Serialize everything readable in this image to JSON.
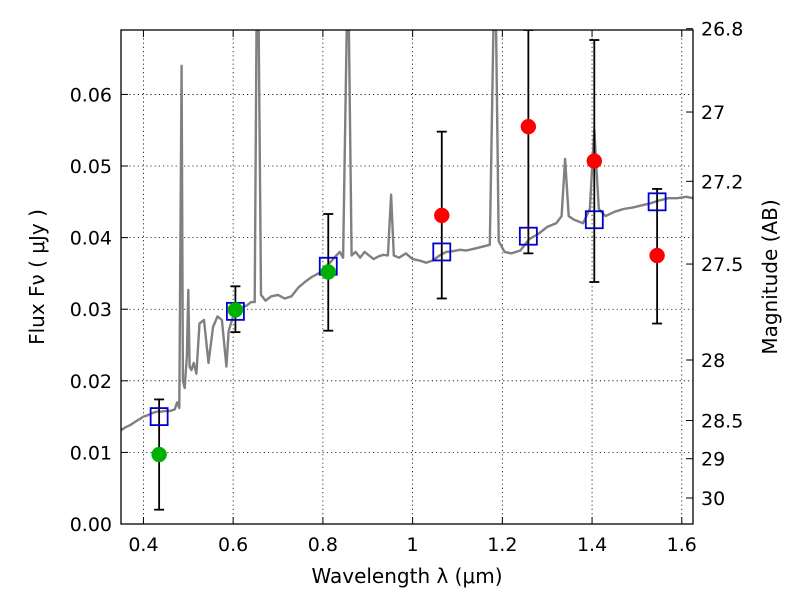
{
  "chart_data": {
    "type": "scatter",
    "xlabel": "Wavelength  λ (μm)",
    "ylabel": "Flux  Fν  ( μJy )",
    "ylabel_right": "Magnitude (AB)",
    "xlim": [
      0.35,
      1.625
    ],
    "ylim": [
      0.0,
      0.069
    ],
    "grid": true,
    "x_ticks": [
      {
        "value": 0.4,
        "label": "0.4"
      },
      {
        "value": 0.6,
        "label": "0.6"
      },
      {
        "value": 0.8,
        "label": "0.8"
      },
      {
        "value": 1.0,
        "label": "1"
      },
      {
        "value": 1.2,
        "label": "1.2"
      },
      {
        "value": 1.4,
        "label": "1.4"
      },
      {
        "value": 1.6,
        "label": "1.6"
      }
    ],
    "y_ticks": [
      {
        "value": 0.0,
        "label": "0.00"
      },
      {
        "value": 0.01,
        "label": "0.01"
      },
      {
        "value": 0.02,
        "label": "0.02"
      },
      {
        "value": 0.03,
        "label": "0.03"
      },
      {
        "value": 0.04,
        "label": "0.04"
      },
      {
        "value": 0.05,
        "label": "0.05"
      },
      {
        "value": 0.06,
        "label": "0.06"
      }
    ],
    "y2_ticks": [
      {
        "value": 26.8,
        "label": "26.8"
      },
      {
        "value": 27.0,
        "label": "27"
      },
      {
        "value": 27.2,
        "label": "27.2"
      },
      {
        "value": 27.5,
        "label": "27.5"
      },
      {
        "value": 28.0,
        "label": "28"
      },
      {
        "value": 28.5,
        "label": "28.5"
      },
      {
        "value": 29.0,
        "label": "29"
      },
      {
        "value": 30.0,
        "label": "30"
      }
    ],
    "spectrum": {
      "color": "#808080",
      "points": [
        [
          0.35,
          0.0131
        ],
        [
          0.36,
          0.0135
        ],
        [
          0.37,
          0.0138
        ],
        [
          0.38,
          0.0142
        ],
        [
          0.39,
          0.0146
        ],
        [
          0.4,
          0.015
        ],
        [
          0.41,
          0.0152
        ],
        [
          0.42,
          0.0155
        ],
        [
          0.43,
          0.0157
        ],
        [
          0.44,
          0.0157
        ],
        [
          0.45,
          0.0158
        ],
        [
          0.46,
          0.0158
        ],
        [
          0.47,
          0.016
        ],
        [
          0.475,
          0.017
        ],
        [
          0.48,
          0.0162
        ],
        [
          0.485,
          0.064
        ],
        [
          0.488,
          0.02
        ],
        [
          0.492,
          0.019
        ],
        [
          0.497,
          0.0235
        ],
        [
          0.5,
          0.0327
        ],
        [
          0.503,
          0.022
        ],
        [
          0.507,
          0.0215
        ],
        [
          0.512,
          0.0225
        ],
        [
          0.518,
          0.021
        ],
        [
          0.525,
          0.028
        ],
        [
          0.535,
          0.0285
        ],
        [
          0.545,
          0.0225
        ],
        [
          0.555,
          0.0275
        ],
        [
          0.565,
          0.029
        ],
        [
          0.575,
          0.0285
        ],
        [
          0.585,
          0.022
        ],
        [
          0.59,
          0.027
        ],
        [
          0.6,
          0.029
        ],
        [
          0.61,
          0.03
        ],
        [
          0.62,
          0.0303
        ],
        [
          0.63,
          0.0305
        ],
        [
          0.64,
          0.031
        ],
        [
          0.648,
          0.031
        ],
        [
          0.652,
          0.069
        ],
        [
          0.657,
          0.069
        ],
        [
          0.662,
          0.032
        ],
        [
          0.672,
          0.0312
        ],
        [
          0.685,
          0.0318
        ],
        [
          0.7,
          0.032
        ],
        [
          0.715,
          0.0315
        ],
        [
          0.73,
          0.0318
        ],
        [
          0.745,
          0.033
        ],
        [
          0.76,
          0.0338
        ],
        [
          0.775,
          0.0345
        ],
        [
          0.79,
          0.035
        ],
        [
          0.805,
          0.0358
        ],
        [
          0.82,
          0.0368
        ],
        [
          0.83,
          0.0375
        ],
        [
          0.838,
          0.038
        ],
        [
          0.845,
          0.0372
        ],
        [
          0.853,
          0.069
        ],
        [
          0.858,
          0.069
        ],
        [
          0.864,
          0.0375
        ],
        [
          0.873,
          0.038
        ],
        [
          0.883,
          0.0372
        ],
        [
          0.893,
          0.038
        ],
        [
          0.903,
          0.0375
        ],
        [
          0.913,
          0.037
        ],
        [
          0.925,
          0.0374
        ],
        [
          0.935,
          0.0376
        ],
        [
          0.945,
          0.0375
        ],
        [
          0.952,
          0.046
        ],
        [
          0.958,
          0.0375
        ],
        [
          0.97,
          0.0372
        ],
        [
          0.985,
          0.0378
        ],
        [
          1.0,
          0.037
        ],
        [
          1.015,
          0.0368
        ],
        [
          1.03,
          0.0365
        ],
        [
          1.045,
          0.0368
        ],
        [
          1.06,
          0.0375
        ],
        [
          1.075,
          0.038
        ],
        [
          1.09,
          0.0381
        ],
        [
          1.105,
          0.0383
        ],
        [
          1.12,
          0.0382
        ],
        [
          1.14,
          0.0385
        ],
        [
          1.16,
          0.0388
        ],
        [
          1.172,
          0.039
        ],
        [
          1.18,
          0.069
        ],
        [
          1.186,
          0.069
        ],
        [
          1.192,
          0.0395
        ],
        [
          1.205,
          0.038
        ],
        [
          1.22,
          0.0378
        ],
        [
          1.24,
          0.0382
        ],
        [
          1.26,
          0.0398
        ],
        [
          1.28,
          0.0405
        ],
        [
          1.3,
          0.0415
        ],
        [
          1.32,
          0.042
        ],
        [
          1.332,
          0.043
        ],
        [
          1.34,
          0.051
        ],
        [
          1.348,
          0.043
        ],
        [
          1.36,
          0.0425
        ],
        [
          1.38,
          0.042
        ],
        [
          1.395,
          0.044
        ],
        [
          1.405,
          0.055
        ],
        [
          1.415,
          0.044
        ],
        [
          1.43,
          0.043
        ],
        [
          1.45,
          0.0436
        ],
        [
          1.47,
          0.044
        ],
        [
          1.49,
          0.0442
        ],
        [
          1.51,
          0.0445
        ],
        [
          1.53,
          0.0448
        ],
        [
          1.55,
          0.0452
        ],
        [
          1.57,
          0.0455
        ],
        [
          1.59,
          0.0455
        ],
        [
          1.61,
          0.0457
        ],
        [
          1.625,
          0.0455
        ]
      ]
    },
    "series": [
      {
        "marker": "square",
        "color": "#0000cc",
        "points": [
          {
            "x": 0.435,
            "y": 0.015
          },
          {
            "x": 0.605,
            "y": 0.0297
          },
          {
            "x": 0.812,
            "y": 0.036
          },
          {
            "x": 1.065,
            "y": 0.038
          },
          {
            "x": 1.258,
            "y": 0.0402
          },
          {
            "x": 1.405,
            "y": 0.0425
          },
          {
            "x": 1.545,
            "y": 0.045
          }
        ]
      },
      {
        "marker": "circle",
        "color": "#00b000",
        "points": [
          {
            "x": 0.435,
            "y": 0.0097,
            "err": [
              0.002,
              0.0174
            ]
          },
          {
            "x": 0.605,
            "y": 0.0299,
            "err": [
              0.0268,
              0.0332
            ]
          },
          {
            "x": 0.812,
            "y": 0.0352,
            "err": [
              0.027,
              0.0433
            ]
          }
        ]
      },
      {
        "marker": "circle",
        "color": "#ff0000",
        "points": [
          {
            "x": 1.065,
            "y": 0.0431,
            "err": [
              0.0315,
              0.0548
            ]
          },
          {
            "x": 1.258,
            "y": 0.0555,
            "err": [
              0.0378,
              0.069
            ]
          },
          {
            "x": 1.405,
            "y": 0.0507,
            "err": [
              0.0338,
              0.0676
            ]
          },
          {
            "x": 1.545,
            "y": 0.0375,
            "err": [
              0.028,
              0.0468
            ]
          }
        ]
      }
    ]
  }
}
